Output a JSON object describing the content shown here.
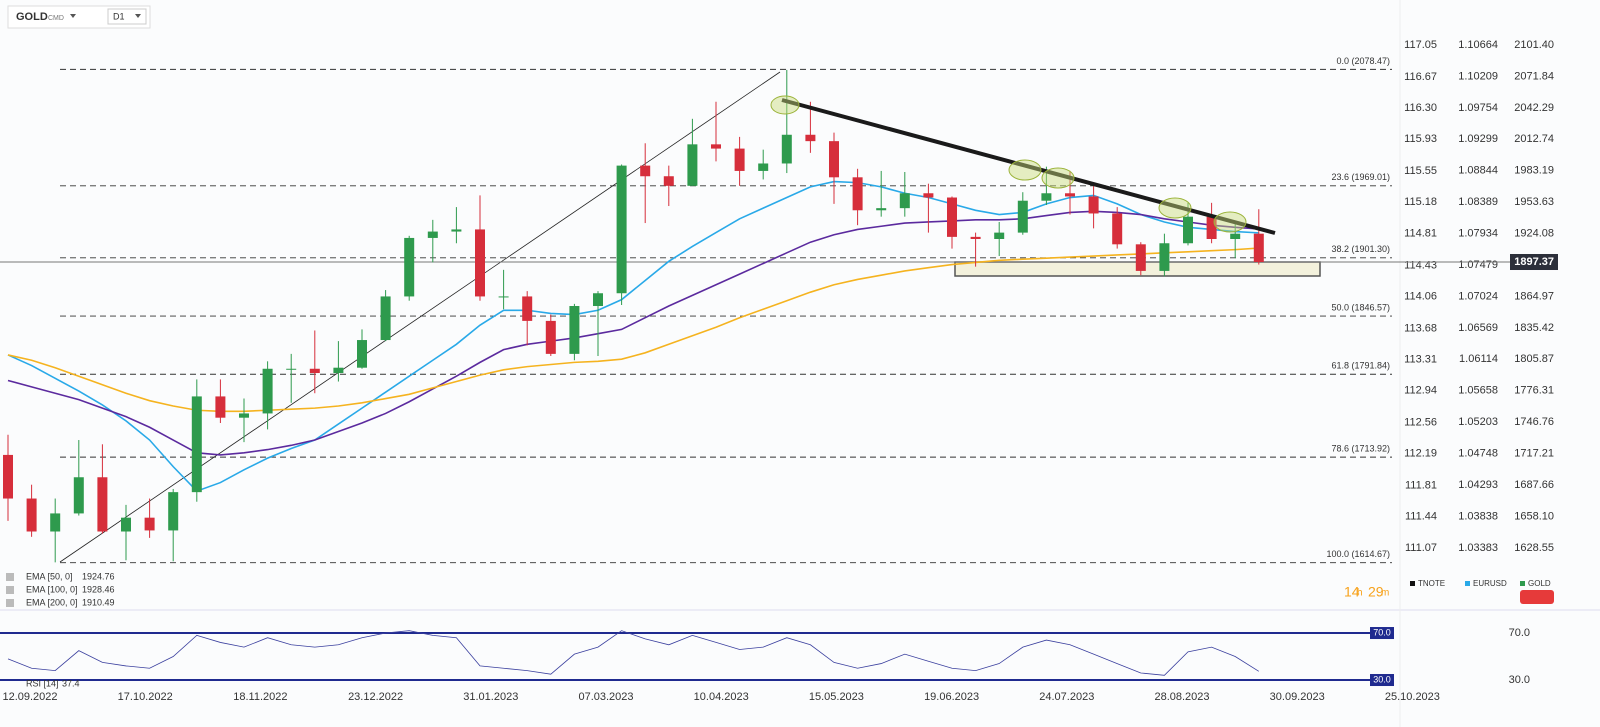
{
  "chart_data": {
    "type": "candlestick",
    "symbol": "GOLD",
    "market": "CMD",
    "timeframe": "D1",
    "ylim": [
      1579.6,
      2143.7
    ],
    "yticks": [
      {
        "value": 2101.4,
        "label": "2101.40"
      },
      2071.84,
      2042.29,
      2012.74,
      1983.19,
      1953.63,
      1924.08,
      1864.97,
      1835.42,
      1805.87,
      1776.31,
      1746.76,
      1717.21,
      1687.66,
      {
        "value": 1658.1,
        "label": "1658.10"
      },
      1628.55
    ],
    "tnote_ticks": [
      117.05,
      116.67,
      {
        "value": 116.3,
        "label": "116.30"
      },
      115.93,
      115.55,
      115.18,
      114.81,
      114.43,
      114.06,
      113.68,
      113.31,
      112.94,
      112.56,
      112.19,
      111.81,
      111.44,
      111.07
    ],
    "eurusd_ticks": [
      1.10664,
      1.10209,
      1.09754,
      1.09299,
      1.08844,
      1.08389,
      1.07934,
      1.07479,
      1.07024,
      1.06569,
      1.06114,
      1.05658,
      1.05203,
      1.04748,
      1.04293,
      1.03838,
      1.03383
    ],
    "x_labels": [
      "12.09.2022",
      "17.10.2022",
      "18.11.2022",
      "23.12.2022",
      "31.01.2023",
      "07.03.2023",
      "10.04.2023",
      "15.05.2023",
      "19.06.2023",
      "24.07.2023",
      "28.08.2023",
      "30.09.2023",
      "25.10.2023"
    ],
    "up_color": "#2e9a4d",
    "down_color": "#d62e3b",
    "open": [
      1716,
      1675,
      1644,
      1661,
      1695,
      1644,
      1657,
      1645,
      1681,
      1771,
      1751,
      1755,
      1797,
      1797,
      1793,
      1798,
      1824,
      1865,
      1920,
      1926,
      1928,
      1865,
      1865,
      1842,
      1811,
      1856,
      1868,
      1988,
      1978,
      1969,
      2008,
      2004,
      1983,
      1990,
      2017,
      2011,
      1977,
      1946,
      1948,
      1962,
      1958,
      1921,
      1919,
      1925,
      1955,
      1962,
      1959,
      1943,
      1914,
      1889,
      1915,
      1940,
      1919,
      1924
    ],
    "high": [
      1735,
      1688,
      1675,
      1730,
      1726,
      1669,
      1675,
      1684,
      1787,
      1787,
      1769,
      1804,
      1811,
      1833,
      1823,
      1834,
      1871,
      1922,
      1937,
      1949,
      1960,
      1890,
      1870,
      1848,
      1858,
      1870,
      1989,
      2009,
      1988,
      2032,
      2048,
      2015,
      2003,
      2078,
      2048,
      2019,
      1985,
      1983,
      1982,
      1971,
      1959,
      1925,
      1935,
      1963,
      1987,
      1983,
      1970,
      1949,
      1916,
      1924,
      1953,
      1953,
      1933,
      1947
    ],
    "low": [
      1654,
      1639,
      1615,
      1659,
      1642,
      1617,
      1638,
      1616,
      1672,
      1746,
      1728,
      1740,
      1765,
      1774,
      1785,
      1797,
      1823,
      1861,
      1897,
      1915,
      1861,
      1853,
      1819,
      1809,
      1805,
      1809,
      1857,
      1934,
      1950,
      1969,
      1992,
      1969,
      1975,
      1981,
      2000,
      1952,
      1932,
      1940,
      1940,
      1925,
      1910,
      1893,
      1903,
      1923,
      1951,
      1942,
      1929,
      1910,
      1885,
      1884,
      1913,
      1915,
      1901,
      1895
    ],
    "close": [
      1675,
      1644,
      1661,
      1695,
      1644,
      1657,
      1645,
      1681,
      1771,
      1751,
      1755,
      1797,
      1797,
      1793,
      1798,
      1824,
      1865,
      1920,
      1926,
      1928,
      1865,
      1865,
      1842,
      1811,
      1856,
      1868,
      1988,
      1978,
      1969,
      2008,
      2004,
      1983,
      1990,
      2017,
      2011,
      1977,
      1946,
      1948,
      1962,
      1958,
      1921,
      1919,
      1925,
      1955,
      1962,
      1959,
      1943,
      1914,
      1889,
      1915,
      1940,
      1919,
      1924,
      1897.37
    ],
    "series": [
      {
        "name": "EMA [50, 0]",
        "color": "#29a9e8",
        "values": [
          1810,
          1800,
          1788,
          1776,
          1763,
          1748,
          1730,
          1705,
          1682,
          1690,
          1702,
          1713,
          1722,
          1730,
          1745,
          1760,
          1775,
          1790,
          1805,
          1820,
          1838,
          1852,
          1852,
          1849,
          1848,
          1852,
          1862,
          1880,
          1898,
          1912,
          1925,
          1938,
          1948,
          1958,
          1968,
          1973,
          1972,
          1968,
          1962,
          1958,
          1952,
          1946,
          1942,
          1944,
          1952,
          1958,
          1960,
          1952,
          1942,
          1935,
          1930,
          1928,
          1926,
          1924.76
        ]
      },
      {
        "name": "EMA [100, 0]",
        "color": "#5b2a9e",
        "values": [
          1786,
          1780,
          1774,
          1768,
          1760,
          1752,
          1742,
          1730,
          1718,
          1716,
          1718,
          1721,
          1725,
          1730,
          1738,
          1746,
          1755,
          1766,
          1778,
          1790,
          1803,
          1815,
          1820,
          1823,
          1826,
          1830,
          1834,
          1845,
          1856,
          1866,
          1876,
          1886,
          1896,
          1906,
          1916,
          1923,
          1928,
          1931,
          1934,
          1935,
          1936,
          1937,
          1937,
          1938,
          1941,
          1944,
          1945,
          1944,
          1942,
          1938,
          1935,
          1932,
          1930,
          1928.46
        ]
      },
      {
        "name": "EMA [200, 0]",
        "color": "#f5b31f",
        "values": [
          1810,
          1805,
          1798,
          1790,
          1782,
          1774,
          1767,
          1762,
          1758,
          1757,
          1757,
          1758,
          1759,
          1760,
          1762,
          1765,
          1769,
          1773,
          1779,
          1785,
          1791,
          1796,
          1799,
          1801,
          1803,
          1804,
          1806,
          1812,
          1820,
          1828,
          1836,
          1845,
          1853,
          1861,
          1869,
          1876,
          1881,
          1885,
          1889,
          1892,
          1895,
          1897,
          1899,
          1900,
          1901,
          1902,
          1903,
          1904,
          1905,
          1906,
          1907,
          1908,
          1909,
          1910.49
        ]
      }
    ],
    "fib_levels": [
      {
        "value": 2078.47,
        "label": "0.0 (2078.47)"
      },
      {
        "value": 1969.01,
        "label": "23.6 (1969.01)"
      },
      {
        "value": 1901.3,
        "label": "38.2 (1901.30)"
      },
      {
        "value": 1846.57,
        "label": "50.0 (1846.57)"
      },
      {
        "value": 1791.84,
        "label": "61.8 (1791.84)"
      },
      {
        "value": 1713.92,
        "label": "78.6 (1713.92)"
      },
      {
        "value": 1614.67,
        "label": "100.0 (1614.67)"
      }
    ],
    "last_price": 1897.37,
    "countdown": [
      "14",
      "h",
      "29",
      "m"
    ],
    "legend": [
      {
        "name": "TNOTE",
        "color": "#111111"
      },
      {
        "name": "EURUSD",
        "color": "#29a9e8"
      },
      {
        "name": "GOLD",
        "color": "#2e9a4d"
      }
    ],
    "rsi": {
      "name": "RSI [14]",
      "color": "#3a3f9e",
      "ylim": [
        21.5,
        87.9
      ],
      "levels": [
        {
          "value": 70,
          "label": "70.0"
        },
        {
          "value": 30,
          "label": "30.0"
        }
      ],
      "values": [
        48,
        40,
        38,
        55,
        45,
        42,
        40,
        50,
        68,
        62,
        58,
        66,
        60,
        58,
        60,
        66,
        70,
        72,
        68,
        66,
        42,
        40,
        38,
        35,
        52,
        58,
        72,
        65,
        60,
        68,
        62,
        56,
        58,
        66,
        60,
        45,
        40,
        44,
        52,
        46,
        40,
        38,
        44,
        58,
        64,
        60,
        52,
        44,
        36,
        34,
        54,
        58,
        50,
        37.4
      ]
    }
  }
}
